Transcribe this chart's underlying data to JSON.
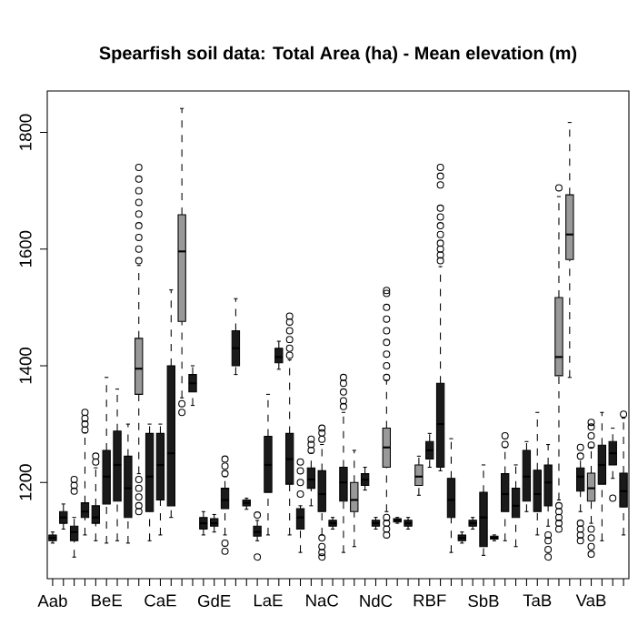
{
  "chart_data": {
    "type": "box",
    "title": "Spearfish soil data: Total Area (ha) -  Mean elevation (m)",
    "categories": [
      "Aab",
      null,
      null,
      null,
      null,
      "BeE",
      null,
      null,
      null,
      null,
      "CaE",
      null,
      null,
      null,
      null,
      "GdE",
      null,
      null,
      null,
      null,
      "LaE",
      null,
      null,
      null,
      null,
      "NaC",
      null,
      null,
      null,
      null,
      "NdC",
      null,
      null,
      null,
      null,
      "RBF",
      null,
      null,
      null,
      null,
      "SbB",
      null,
      null,
      null,
      null,
      "TaB",
      null,
      null,
      null,
      null,
      "VaB",
      null,
      null,
      null
    ],
    "ylim": [
      1035,
      1871
    ],
    "yticks": [
      1200,
      1400,
      1600,
      1800
    ],
    "colors": [
      "#1a1a1a",
      "#1a1a1a",
      "#1a1a1a",
      "#1a1a1a",
      "#1a1a1a",
      "#1a1a1a",
      "#1a1a1a",
      "#1a1a1a",
      "#999999",
      "#1a1a1a",
      "#1a1a1a",
      "#1a1a1a",
      "#999999",
      "#1a1a1a",
      "#1a1a1a",
      "#1a1a1a",
      "#1a1a1a",
      "#1a1a1a",
      "#1a1a1a",
      "#1a1a1a",
      "#1a1a1a",
      "#1a1a1a",
      "#1a1a1a",
      "#1a1a1a",
      "#1a1a1a",
      "#1a1a1a",
      "#1a1a1a",
      "#1a1a1a",
      "#999999",
      "#1a1a1a",
      "#1a1a1a",
      "#999999",
      "#1a1a1a",
      "#1a1a1a",
      "#999999",
      "#1a1a1a",
      "#1a1a1a",
      "#1a1a1a",
      "#1a1a1a",
      "#1a1a1a",
      "#1a1a1a",
      "#1a1a1a",
      "#1a1a1a",
      "#1a1a1a",
      "#1a1a1a",
      "#1a1a1a",
      "#1a1a1a",
      "#999999",
      "#999999",
      "#1a1a1a",
      "#999999",
      "#1a1a1a",
      "#1a1a1a",
      "#1a1a1a"
    ],
    "boxes": [
      {
        "low": 1096,
        "q1": 1100,
        "median": 1105,
        "q3": 1110,
        "high": 1115
      },
      {
        "low": 1120,
        "q1": 1130,
        "median": 1140,
        "q3": 1150,
        "high": 1163
      },
      {
        "low": 1072,
        "q1": 1100,
        "median": 1115,
        "q3": 1125,
        "high": 1140,
        "outliers": [
          1185,
          1195,
          1205
        ]
      },
      {
        "low": 1110,
        "q1": 1140,
        "median": 1150,
        "q3": 1165,
        "high": 1285,
        "outliers": [
          1290,
          1300,
          1310,
          1320
        ]
      },
      {
        "low": 1100,
        "q1": 1130,
        "median": 1140,
        "q3": 1160,
        "high": 1225,
        "outliers": [
          1235,
          1245
        ]
      },
      {
        "low": 1096,
        "q1": 1163,
        "median": 1210,
        "q3": 1255,
        "high": 1380
      },
      {
        "low": 1100,
        "q1": 1168,
        "median": 1230,
        "q3": 1288,
        "high": 1360
      },
      {
        "low": 1096,
        "q1": 1140,
        "median": 1190,
        "q3": 1245,
        "high": 1300
      },
      {
        "low": 1215,
        "q1": 1351,
        "median": 1395,
        "q3": 1447,
        "high": 1572,
        "outliers": [
          1150,
          1160,
          1175,
          1190,
          1205,
          1580,
          1600,
          1620,
          1640,
          1660,
          1680,
          1700,
          1720,
          1740
        ]
      },
      {
        "low": 1100,
        "q1": 1150,
        "median": 1210,
        "q3": 1284,
        "high": 1300
      },
      {
        "low": 1110,
        "q1": 1170,
        "median": 1230,
        "q3": 1284,
        "high": 1300
      },
      {
        "low": 1140,
        "q1": 1160,
        "median": 1250,
        "q3": 1400,
        "high": 1530
      },
      {
        "low": 1345,
        "q1": 1476,
        "median": 1596,
        "q3": 1659,
        "high": 1841,
        "outliers": [
          1320,
          1335
        ]
      },
      {
        "low": 1332,
        "q1": 1355,
        "median": 1370,
        "q3": 1385,
        "high": 1400
      },
      {
        "low": 1110,
        "q1": 1120,
        "median": 1130,
        "q3": 1140,
        "high": 1150
      },
      {
        "low": 1115,
        "q1": 1125,
        "median": 1130,
        "q3": 1138,
        "high": 1145
      },
      {
        "low": 1110,
        "q1": 1155,
        "median": 1170,
        "q3": 1190,
        "high": 1210,
        "outliers": [
          1082,
          1096,
          1215,
          1228,
          1240
        ]
      },
      {
        "low": 1385,
        "q1": 1400,
        "median": 1430,
        "q3": 1460,
        "high": 1515
      },
      {
        "low": 1154,
        "q1": 1160,
        "median": 1165,
        "q3": 1170,
        "high": 1173
      },
      {
        "low": 1100,
        "q1": 1108,
        "median": 1115,
        "q3": 1125,
        "high": 1135,
        "outliers": [
          1072,
          1144
        ]
      },
      {
        "low": 1110,
        "q1": 1183,
        "median": 1230,
        "q3": 1279,
        "high": 1351
      },
      {
        "low": 1394,
        "q1": 1405,
        "median": 1415,
        "q3": 1430,
        "high": 1442
      },
      {
        "low": 1110,
        "q1": 1197,
        "median": 1240,
        "q3": 1284,
        "high": 1410,
        "outliers": [
          1418,
          1430,
          1445,
          1460,
          1475,
          1485
        ]
      },
      {
        "low": 1080,
        "q1": 1120,
        "median": 1140,
        "q3": 1155,
        "high": 1160,
        "outliers": [
          1180,
          1200,
          1220,
          1235
        ]
      },
      {
        "low": 1160,
        "q1": 1190,
        "median": 1205,
        "q3": 1225,
        "high": 1250,
        "outliers": [
          1255,
          1265,
          1274
        ]
      },
      {
        "low": 1110,
        "q1": 1150,
        "median": 1180,
        "q3": 1220,
        "high": 1265,
        "outliers": [
          1072,
          1080,
          1090,
          1105,
          1274,
          1285,
          1293
        ]
      },
      {
        "low": 1120,
        "q1": 1125,
        "median": 1130,
        "q3": 1135,
        "high": 1140
      },
      {
        "low": 1080,
        "q1": 1168,
        "median": 1200,
        "q3": 1226,
        "high": 1320,
        "outliers": [
          1330,
          1340,
          1355,
          1370,
          1380
        ]
      },
      {
        "low": 1090,
        "q1": 1150,
        "median": 1170,
        "q3": 1200,
        "high": 1255
      },
      {
        "low": 1187,
        "q1": 1195,
        "median": 1205,
        "q3": 1215,
        "high": 1226
      },
      {
        "low": 1120,
        "q1": 1125,
        "median": 1130,
        "q3": 1135,
        "high": 1140
      },
      {
        "low": 1150,
        "q1": 1226,
        "median": 1260,
        "q3": 1293,
        "high": 1375,
        "outliers": [
          1110,
          1120,
          1130,
          1140,
          1380,
          1400,
          1420,
          1440,
          1460,
          1480,
          1500,
          1524,
          1529
        ]
      },
      {
        "low": 1130,
        "q1": 1132,
        "median": 1135,
        "q3": 1138,
        "high": 1140
      },
      {
        "low": 1120,
        "q1": 1125,
        "median": 1130,
        "q3": 1135,
        "high": 1140
      },
      {
        "low": 1178,
        "q1": 1195,
        "median": 1210,
        "q3": 1230,
        "high": 1245
      },
      {
        "low": 1226,
        "q1": 1240,
        "median": 1255,
        "q3": 1270,
        "high": 1284
      },
      {
        "low": 1220,
        "q1": 1226,
        "median": 1300,
        "q3": 1370,
        "high": 1570,
        "outliers": [
          1580,
          1590,
          1600,
          1610,
          1625,
          1640,
          1655,
          1670,
          1710,
          1725,
          1740
        ]
      },
      {
        "low": 1080,
        "q1": 1140,
        "median": 1170,
        "q3": 1207,
        "high": 1275
      },
      {
        "low": 1096,
        "q1": 1100,
        "median": 1105,
        "q3": 1110,
        "high": 1115
      },
      {
        "low": 1120,
        "q1": 1125,
        "median": 1130,
        "q3": 1135,
        "high": 1140
      },
      {
        "low": 1075,
        "q1": 1090,
        "median": 1140,
        "q3": 1183,
        "high": 1230
      },
      {
        "low": 1100,
        "q1": 1103,
        "median": 1105,
        "q3": 1108,
        "high": 1110
      },
      {
        "low": 1100,
        "q1": 1150,
        "median": 1180,
        "q3": 1215,
        "high": 1260,
        "outliers": [
          1265,
          1280
        ]
      },
      {
        "low": 1090,
        "q1": 1140,
        "median": 1160,
        "q3": 1190,
        "high": 1230
      },
      {
        "low": 1150,
        "q1": 1168,
        "median": 1210,
        "q3": 1255,
        "high": 1270
      },
      {
        "low": 1110,
        "q1": 1150,
        "median": 1180,
        "q3": 1221,
        "high": 1320
      },
      {
        "low": 1125,
        "q1": 1160,
        "median": 1200,
        "q3": 1230,
        "high": 1265,
        "outliers": [
          1072,
          1085,
          1100,
          1110
        ]
      },
      {
        "low": 1170,
        "q1": 1383,
        "median": 1415,
        "q3": 1517,
        "high": 1690,
        "outliers": [
          1120,
          1130,
          1140,
          1150,
          1160,
          1705
        ]
      },
      {
        "low": 1380,
        "q1": 1582,
        "median": 1625,
        "q3": 1693,
        "high": 1817
      },
      {
        "low": 1150,
        "q1": 1185,
        "median": 1210,
        "q3": 1225,
        "high": 1240,
        "outliers": [
          1100,
          1110,
          1120,
          1130,
          1245,
          1260
        ]
      },
      {
        "low": 1130,
        "q1": 1168,
        "median": 1190,
        "q3": 1216,
        "high": 1260,
        "outliers": [
          1077,
          1090,
          1105,
          1120,
          1264,
          1280,
          1295,
          1303
        ]
      },
      {
        "low": 1100,
        "q1": 1197,
        "median": 1230,
        "q3": 1264,
        "high": 1320
      },
      {
        "low": 1207,
        "q1": 1230,
        "median": 1250,
        "q3": 1270,
        "high": 1293,
        "outliers": [
          1173
        ]
      },
      {
        "low": 1110,
        "q1": 1158,
        "median": 1185,
        "q3": 1216,
        "high": 1310,
        "outliers": [
          1317
        ]
      }
    ]
  }
}
